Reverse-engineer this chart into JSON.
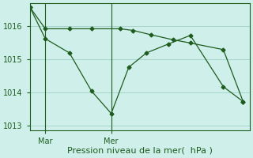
{
  "bg_color": "#cff0ea",
  "line_color": "#1e5c1e",
  "grid_color": "#a8d5cc",
  "text_color": "#1e5c1e",
  "xlabel": "Pression niveau de la mer(  hPa )",
  "xlabel_fontsize": 8,
  "tick_fontsize": 7,
  "ylim": [
    1012.85,
    1016.7
  ],
  "yticks": [
    1013,
    1014,
    1015,
    1016
  ],
  "xlim": [
    0,
    10
  ],
  "mar_x": 0.7,
  "mer_x": 3.7,
  "vline_labels": [
    "Mar",
    "Mer"
  ],
  "line1_x": [
    0.0,
    0.7,
    1.8,
    2.8,
    4.1,
    4.7,
    5.5,
    6.5,
    7.3,
    8.8,
    9.7
  ],
  "line1_y": [
    1016.58,
    1015.93,
    1015.93,
    1015.93,
    1015.93,
    1015.88,
    1015.75,
    1015.6,
    1015.5,
    1015.3,
    1013.73
  ],
  "line2_x": [
    0.0,
    0.7,
    1.8,
    2.8,
    3.7,
    4.5,
    5.3,
    6.3,
    7.3,
    8.8,
    9.7
  ],
  "line2_y": [
    1016.58,
    1015.63,
    1015.2,
    1014.05,
    1013.37,
    1014.77,
    1015.2,
    1015.47,
    1015.73,
    1014.18,
    1013.73
  ],
  "marker_size": 2.5,
  "line_width": 0.9
}
